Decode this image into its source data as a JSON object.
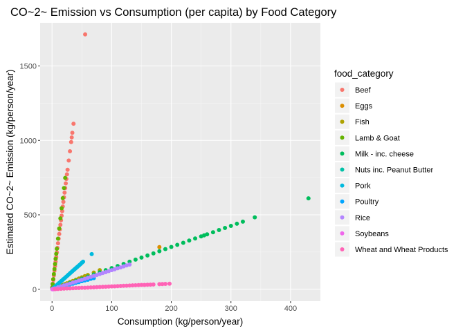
{
  "chart_data": {
    "type": "scatter",
    "title": "CO~2~ Emission vs Consumption (per capita) by Food Category",
    "xlabel": "Consumption (kg/person/year)",
    "ylabel": "Estimated CO~2~ Emission (kg/person/year)",
    "xlim": [
      -20,
      450
    ],
    "ylim": [
      -80,
      1790
    ],
    "x_ticks": [
      0,
      100,
      200,
      300,
      400
    ],
    "y_ticks": [
      0,
      500,
      1000,
      1500
    ],
    "grid": true,
    "legend_title": "food_category",
    "legend_position": "right",
    "series": [
      {
        "name": "Beef",
        "color": "#F8766D",
        "factor": 30.9,
        "x": [
          0.5,
          1.2,
          2,
          3,
          4,
          5,
          6,
          7,
          8,
          9,
          10,
          11,
          12,
          13,
          14,
          15,
          16,
          17,
          18,
          19,
          20,
          21,
          22,
          23,
          24,
          25,
          26,
          28,
          30,
          32,
          33,
          34,
          36,
          55.5
        ],
        "y": [
          15,
          37,
          62,
          93,
          124,
          155,
          185,
          216,
          247,
          278,
          309,
          340,
          371,
          402,
          433,
          463,
          494,
          525,
          556,
          587,
          618,
          649,
          680,
          711,
          741,
          772,
          803,
          865,
          927,
          989,
          1020,
          1051,
          1112,
          1712
        ]
      },
      {
        "name": "Eggs",
        "color": "#DB8E00",
        "factor": 1.57,
        "x": [
          1,
          3,
          5,
          8,
          10,
          12,
          14,
          16,
          18,
          20,
          22,
          25,
          30,
          35,
          40,
          45,
          50,
          55,
          180
        ],
        "y": [
          2,
          5,
          8,
          13,
          16,
          19,
          22,
          25,
          28,
          31,
          35,
          39,
          47,
          55,
          63,
          71,
          79,
          86,
          283
        ]
      },
      {
        "name": "Fish",
        "color": "#AEA200",
        "factor": 1.6,
        "x": [
          2,
          5,
          8,
          12,
          16,
          20,
          25,
          30,
          35,
          40,
          45,
          50,
          55,
          60,
          70,
          80
        ],
        "y": [
          3,
          8,
          13,
          19,
          26,
          32,
          40,
          48,
          56,
          64,
          72,
          80,
          88,
          96,
          112,
          128
        ]
      },
      {
        "name": "Lamb & Goat",
        "color": "#64B200",
        "factor": 34.0,
        "x": [
          0.3,
          1,
          2,
          3,
          4,
          5,
          6,
          7,
          8,
          10,
          12,
          14,
          16,
          18,
          20,
          22
        ],
        "y": [
          10,
          34,
          68,
          102,
          136,
          170,
          204,
          238,
          272,
          340,
          408,
          476,
          544,
          612,
          680,
          748
        ]
      },
      {
        "name": "Milk - inc. cheese",
        "color": "#00BD5C",
        "factor": 1.42,
        "x": [
          5,
          10,
          20,
          30,
          40,
          50,
          60,
          70,
          80,
          90,
          100,
          110,
          120,
          130,
          140,
          150,
          160,
          170,
          180,
          190,
          200,
          210,
          220,
          230,
          240,
          250,
          255,
          260,
          270,
          280,
          290,
          300,
          310,
          320,
          340,
          430
        ],
        "y": [
          7,
          14,
          28,
          43,
          57,
          71,
          85,
          99,
          114,
          128,
          142,
          156,
          170,
          185,
          199,
          213,
          227,
          241,
          256,
          270,
          284,
          298,
          312,
          327,
          341,
          355,
          362,
          369,
          383,
          398,
          412,
          426,
          440,
          454,
          483,
          611
        ]
      },
      {
        "name": "Nuts inc. Peanut Butter",
        "color": "#00C1A7",
        "factor": 1.8,
        "x": [
          0.5,
          1,
          2,
          3,
          4,
          5,
          6,
          7,
          8,
          10
        ],
        "y": [
          1,
          2,
          4,
          5,
          7,
          9,
          11,
          13,
          14,
          18
        ]
      },
      {
        "name": "Pork",
        "color": "#00BADE",
        "factor": 3.55,
        "x": [
          0.5,
          2,
          4,
          6,
          8,
          10,
          12,
          14,
          16,
          18,
          20,
          22,
          24,
          26,
          28,
          30,
          32,
          34,
          36,
          38,
          40,
          42,
          44,
          46,
          48,
          50,
          52,
          66.5
        ],
        "y": [
          2,
          7,
          14,
          21,
          28,
          36,
          43,
          50,
          57,
          64,
          71,
          78,
          85,
          92,
          99,
          107,
          114,
          121,
          128,
          135,
          142,
          149,
          156,
          163,
          170,
          178,
          185,
          236
        ]
      },
      {
        "name": "Poultry",
        "color": "#00A5FF",
        "factor": 1.07,
        "x": [
          1,
          5,
          10,
          15,
          20,
          25,
          30,
          35,
          40,
          45,
          50,
          55,
          60,
          65,
          70
        ],
        "y": [
          1,
          5,
          11,
          16,
          21,
          27,
          32,
          37,
          43,
          48,
          54,
          59,
          64,
          70,
          75
        ]
      },
      {
        "name": "Rice",
        "color": "#B385FF",
        "factor": 1.28,
        "x": [
          2,
          5,
          10,
          15,
          20,
          25,
          30,
          35,
          40,
          45,
          50,
          55,
          60,
          65,
          70,
          75,
          80,
          85,
          90,
          95,
          100,
          105,
          110,
          115,
          120,
          125,
          130
        ],
        "y": [
          3,
          6,
          13,
          19,
          26,
          32,
          38,
          45,
          51,
          58,
          64,
          70,
          77,
          83,
          90,
          96,
          102,
          109,
          115,
          122,
          128,
          134,
          141,
          147,
          154,
          160,
          166
        ]
      },
      {
        "name": "Soybeans",
        "color": "#EF67EB",
        "factor": 0.2,
        "x": [
          0.5,
          1,
          2,
          4,
          6
        ],
        "y": [
          0,
          0,
          0,
          1,
          1
        ]
      },
      {
        "name": "Wheat and Wheat Products",
        "color": "#FF63B6",
        "factor": 0.19,
        "x": [
          5,
          10,
          15,
          20,
          25,
          30,
          35,
          40,
          45,
          50,
          55,
          60,
          65,
          70,
          75,
          80,
          85,
          90,
          95,
          100,
          105,
          110,
          115,
          120,
          125,
          130,
          135,
          140,
          145,
          150,
          155,
          160,
          165,
          170,
          180,
          185,
          190,
          197
        ],
        "y": [
          1,
          2,
          3,
          4,
          5,
          6,
          7,
          8,
          9,
          10,
          10,
          11,
          12,
          13,
          14,
          15,
          16,
          17,
          18,
          19,
          20,
          21,
          22,
          23,
          24,
          25,
          26,
          27,
          28,
          29,
          29,
          30,
          31,
          32,
          34,
          35,
          36,
          37
        ]
      }
    ]
  }
}
